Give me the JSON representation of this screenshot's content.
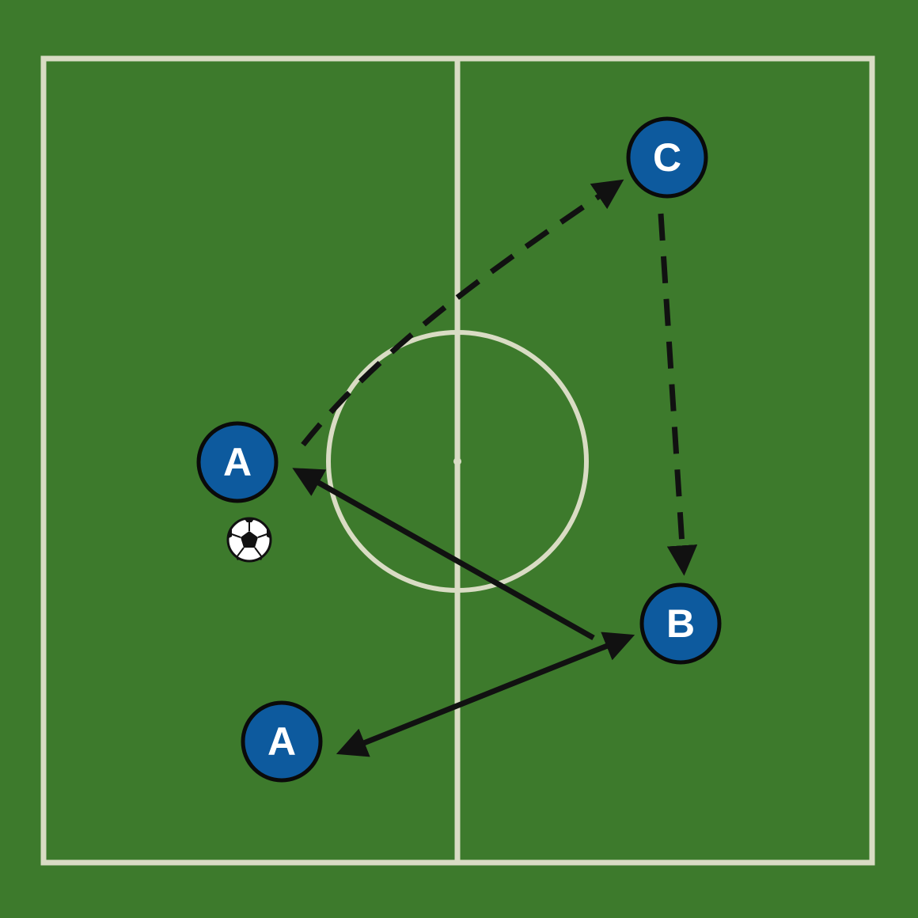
{
  "colors": {
    "grass": "#3d7a2c",
    "grass_dark": "#386f28",
    "line": "#d9dcc4",
    "player_fill": "#0d5a9e",
    "player_stroke": "#0a0a0a",
    "arrow": "#111111",
    "text": "#ffffff"
  },
  "players": [
    {
      "id": "a1",
      "label": "A"
    },
    {
      "id": "a2",
      "label": "A"
    },
    {
      "id": "b",
      "label": "B"
    },
    {
      "id": "c",
      "label": "C"
    }
  ],
  "ball": {
    "icon": "soccer-ball-icon"
  },
  "arrows": [
    {
      "from": "a1",
      "to": "c",
      "style": "dashed",
      "kind": "player-run"
    },
    {
      "from": "c",
      "to": "b",
      "style": "dashed",
      "kind": "player-run"
    },
    {
      "from": "b",
      "to": "a1",
      "style": "solid",
      "kind": "pass"
    },
    {
      "from": "a2",
      "to": "b",
      "style": "solid",
      "kind": "pass",
      "bidirectional": true
    }
  ]
}
